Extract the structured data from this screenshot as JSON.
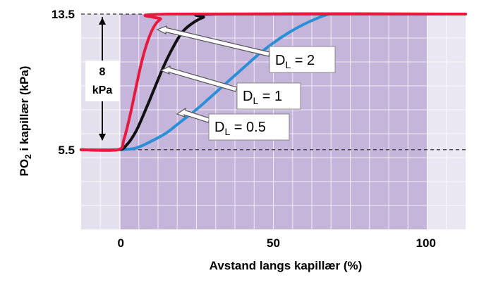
{
  "chart_data": {
    "type": "line",
    "title": "",
    "xlabel": "Avstand langs kapillær (%)",
    "ylabel_parts": {
      "main": "PO",
      "subscript": "2",
      "rest": " i kapillær (kPa)"
    },
    "xlim": [
      -13,
      113
    ],
    "ylim": [
      0.8,
      13.5
    ],
    "x_ticks": [
      {
        "value": 0,
        "label": "0"
      },
      {
        "value": 50,
        "label": "50"
      },
      {
        "value": 100,
        "label": "100"
      }
    ],
    "y_ticks": [
      {
        "value": 5.5,
        "label": "5.5"
      },
      {
        "value": 13.5,
        "label": "13.5"
      }
    ],
    "reference_lines": [
      5.5,
      13.5
    ],
    "grid": true,
    "series": [
      {
        "color": "#e8183f",
        "points": [
          [
            -13,
            5.5
          ],
          [
            -1,
            5.5
          ],
          [
            1,
            6.1
          ],
          [
            3,
            7.5
          ],
          [
            5,
            9.2
          ],
          [
            7,
            10.8
          ],
          [
            9,
            12.0
          ],
          [
            11,
            12.8
          ],
          [
            13,
            13.2
          ],
          [
            16,
            13.5
          ],
          [
            113,
            13.5
          ]
        ]
      },
      {
        "color": "#111111",
        "points": [
          [
            -13,
            5.5
          ],
          [
            -1,
            5.5
          ],
          [
            2,
            5.8
          ],
          [
            5,
            6.6
          ],
          [
            8,
            7.8
          ],
          [
            11,
            9.1
          ],
          [
            14,
            10.4
          ],
          [
            17,
            11.5
          ],
          [
            20,
            12.4
          ],
          [
            23,
            12.9
          ],
          [
            27,
            13.3
          ],
          [
            32,
            13.5
          ],
          [
            113,
            13.5
          ]
        ]
      },
      {
        "color": "#2a8fd6",
        "points": [
          [
            0,
            5.5
          ],
          [
            5,
            5.6
          ],
          [
            10,
            6.0
          ],
          [
            15,
            6.5
          ],
          [
            20,
            7.2
          ],
          [
            25,
            7.9
          ],
          [
            30,
            8.7
          ],
          [
            35,
            9.5
          ],
          [
            40,
            10.3
          ],
          [
            45,
            11.1
          ],
          [
            50,
            11.8
          ],
          [
            55,
            12.4
          ],
          [
            60,
            12.9
          ],
          [
            65,
            13.3
          ],
          [
            68,
            13.5
          ]
        ]
      }
    ],
    "annotations": [
      {
        "main": "D",
        "subscript": "L",
        "rest": " = 2"
      },
      {
        "main": "D",
        "subscript": "L",
        "rest": " = 1"
      },
      {
        "main": "D",
        "subscript": "L",
        "rest": " = 0.5"
      }
    ],
    "bracket": {
      "line1": "8",
      "line2": "kPa"
    },
    "colors": {
      "plot_bg": "#c5b5da",
      "left_band": "#e5e0ee",
      "right_band": "#eae6f2",
      "grid": "#ffffff"
    }
  }
}
